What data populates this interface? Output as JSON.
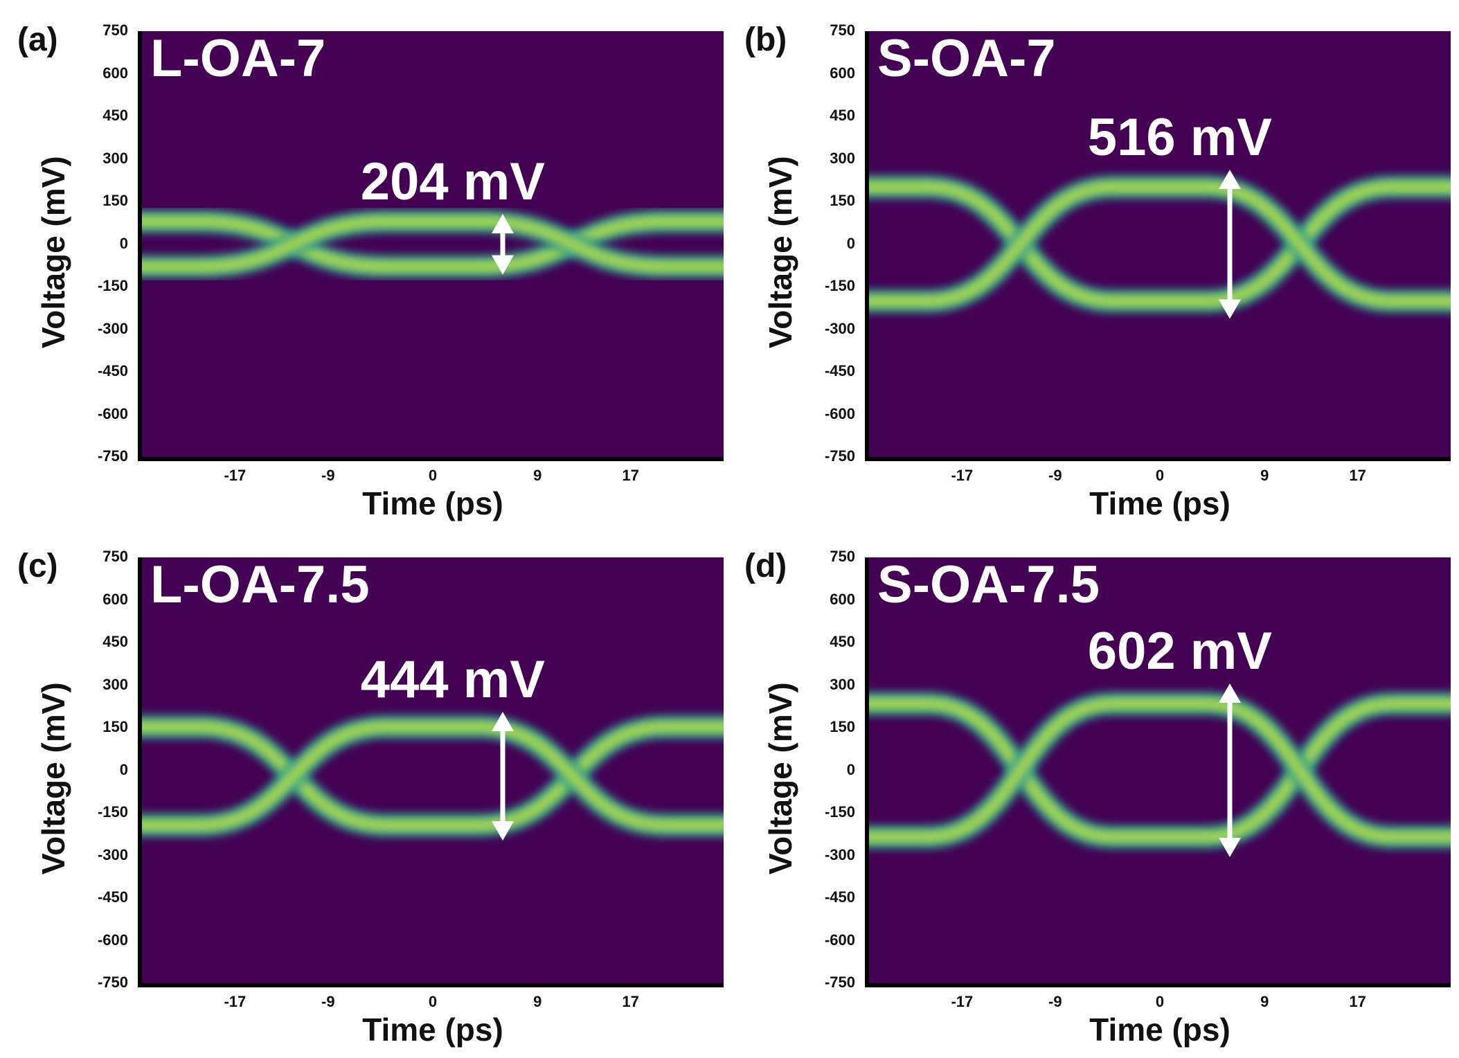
{
  "chart_data": [
    {
      "type": "heatmap",
      "panel_letter": "(a)",
      "sample": "L-OA-7",
      "amplitude_label": "204 mV",
      "amplitude_mV": 204,
      "eye_center_mV": 0,
      "xlabel": "Time (ps)",
      "ylabel": "Voltage (mV)",
      "xticks": [
        "-17",
        "-9",
        "0",
        "9",
        "17"
      ],
      "yticks": [
        "750",
        "600",
        "450",
        "300",
        "150",
        "0",
        "-150",
        "-300",
        "-450",
        "-600",
        "-750"
      ],
      "ylim": [
        -750,
        750
      ],
      "xlim": [
        -25,
        25
      ],
      "crossings_ps": [
        -12,
        12
      ]
    },
    {
      "type": "heatmap",
      "panel_letter": "(b)",
      "sample": "S-OA-7",
      "amplitude_label": "516 mV",
      "amplitude_mV": 516,
      "eye_center_mV": 0,
      "xlabel": "Time (ps)",
      "ylabel": "Voltage (mV)",
      "xticks": [
        "-17",
        "-9",
        "0",
        "9",
        "17"
      ],
      "yticks": [
        "750",
        "600",
        "450",
        "300",
        "150",
        "0",
        "-150",
        "-300",
        "-450",
        "-600",
        "-750"
      ],
      "ylim": [
        -750,
        750
      ],
      "xlim": [
        -25,
        25
      ],
      "crossings_ps": [
        -12,
        12
      ]
    },
    {
      "type": "heatmap",
      "panel_letter": "(c)",
      "sample": "L-OA-7.5",
      "amplitude_label": "444 mV",
      "amplitude_mV": 444,
      "eye_center_mV": -20,
      "xlabel": "Time (ps)",
      "ylabel": "Voltage (mV)",
      "xticks": [
        "-17",
        "-9",
        "0",
        "9",
        "17"
      ],
      "yticks": [
        "750",
        "600",
        "450",
        "300",
        "150",
        "0",
        "-150",
        "-300",
        "-450",
        "-600",
        "-750"
      ],
      "ylim": [
        -750,
        750
      ],
      "xlim": [
        -25,
        25
      ],
      "crossings_ps": [
        -12,
        12
      ]
    },
    {
      "type": "heatmap",
      "panel_letter": "(d)",
      "sample": "S-OA-7.5",
      "amplitude_label": "602 mV",
      "amplitude_mV": 602,
      "eye_center_mV": 0,
      "xlabel": "Time (ps)",
      "ylabel": "Voltage (mV)",
      "xticks": [
        "-17",
        "-9",
        "0",
        "9",
        "17"
      ],
      "yticks": [
        "750",
        "600",
        "450",
        "300",
        "150",
        "0",
        "-150",
        "-300",
        "-450",
        "-600",
        "-750"
      ],
      "ylim": [
        -750,
        750
      ],
      "xlim": [
        -25,
        25
      ],
      "crossings_ps": [
        -12,
        12
      ]
    }
  ],
  "colors": {
    "background": "#440154",
    "trace_outer": "#21918c",
    "trace_mid": "#5ec962",
    "trace_core": "#fde725",
    "annotation": "#ffffff"
  }
}
